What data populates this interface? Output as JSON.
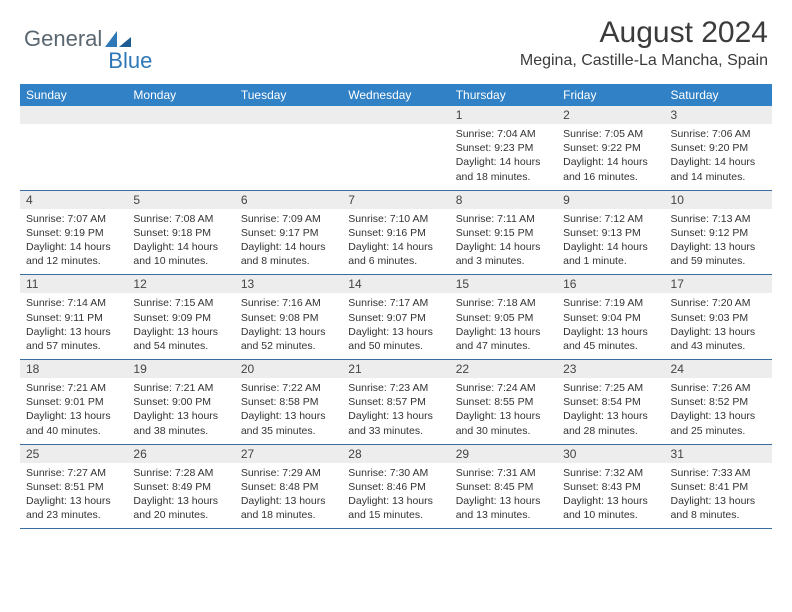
{
  "brand": {
    "part1": "General",
    "part2": "Blue"
  },
  "title": "August 2024",
  "location": "Megina, Castille-La Mancha, Spain",
  "colors": {
    "header_bg": "#3081c6",
    "header_text": "#ffffff",
    "band_bg": "#ededed",
    "rule": "#3b6ca0",
    "logo_gray": "#5a6770",
    "logo_blue": "#2f78b7"
  },
  "day_names": [
    "Sunday",
    "Monday",
    "Tuesday",
    "Wednesday",
    "Thursday",
    "Friday",
    "Saturday"
  ],
  "weeks": [
    [
      {
        "n": "",
        "sr": "",
        "ss": "",
        "dl": ""
      },
      {
        "n": "",
        "sr": "",
        "ss": "",
        "dl": ""
      },
      {
        "n": "",
        "sr": "",
        "ss": "",
        "dl": ""
      },
      {
        "n": "",
        "sr": "",
        "ss": "",
        "dl": ""
      },
      {
        "n": "1",
        "sr": "Sunrise: 7:04 AM",
        "ss": "Sunset: 9:23 PM",
        "dl": "Daylight: 14 hours and 18 minutes."
      },
      {
        "n": "2",
        "sr": "Sunrise: 7:05 AM",
        "ss": "Sunset: 9:22 PM",
        "dl": "Daylight: 14 hours and 16 minutes."
      },
      {
        "n": "3",
        "sr": "Sunrise: 7:06 AM",
        "ss": "Sunset: 9:20 PM",
        "dl": "Daylight: 14 hours and 14 minutes."
      }
    ],
    [
      {
        "n": "4",
        "sr": "Sunrise: 7:07 AM",
        "ss": "Sunset: 9:19 PM",
        "dl": "Daylight: 14 hours and 12 minutes."
      },
      {
        "n": "5",
        "sr": "Sunrise: 7:08 AM",
        "ss": "Sunset: 9:18 PM",
        "dl": "Daylight: 14 hours and 10 minutes."
      },
      {
        "n": "6",
        "sr": "Sunrise: 7:09 AM",
        "ss": "Sunset: 9:17 PM",
        "dl": "Daylight: 14 hours and 8 minutes."
      },
      {
        "n": "7",
        "sr": "Sunrise: 7:10 AM",
        "ss": "Sunset: 9:16 PM",
        "dl": "Daylight: 14 hours and 6 minutes."
      },
      {
        "n": "8",
        "sr": "Sunrise: 7:11 AM",
        "ss": "Sunset: 9:15 PM",
        "dl": "Daylight: 14 hours and 3 minutes."
      },
      {
        "n": "9",
        "sr": "Sunrise: 7:12 AM",
        "ss": "Sunset: 9:13 PM",
        "dl": "Daylight: 14 hours and 1 minute."
      },
      {
        "n": "10",
        "sr": "Sunrise: 7:13 AM",
        "ss": "Sunset: 9:12 PM",
        "dl": "Daylight: 13 hours and 59 minutes."
      }
    ],
    [
      {
        "n": "11",
        "sr": "Sunrise: 7:14 AM",
        "ss": "Sunset: 9:11 PM",
        "dl": "Daylight: 13 hours and 57 minutes."
      },
      {
        "n": "12",
        "sr": "Sunrise: 7:15 AM",
        "ss": "Sunset: 9:09 PM",
        "dl": "Daylight: 13 hours and 54 minutes."
      },
      {
        "n": "13",
        "sr": "Sunrise: 7:16 AM",
        "ss": "Sunset: 9:08 PM",
        "dl": "Daylight: 13 hours and 52 minutes."
      },
      {
        "n": "14",
        "sr": "Sunrise: 7:17 AM",
        "ss": "Sunset: 9:07 PM",
        "dl": "Daylight: 13 hours and 50 minutes."
      },
      {
        "n": "15",
        "sr": "Sunrise: 7:18 AM",
        "ss": "Sunset: 9:05 PM",
        "dl": "Daylight: 13 hours and 47 minutes."
      },
      {
        "n": "16",
        "sr": "Sunrise: 7:19 AM",
        "ss": "Sunset: 9:04 PM",
        "dl": "Daylight: 13 hours and 45 minutes."
      },
      {
        "n": "17",
        "sr": "Sunrise: 7:20 AM",
        "ss": "Sunset: 9:03 PM",
        "dl": "Daylight: 13 hours and 43 minutes."
      }
    ],
    [
      {
        "n": "18",
        "sr": "Sunrise: 7:21 AM",
        "ss": "Sunset: 9:01 PM",
        "dl": "Daylight: 13 hours and 40 minutes."
      },
      {
        "n": "19",
        "sr": "Sunrise: 7:21 AM",
        "ss": "Sunset: 9:00 PM",
        "dl": "Daylight: 13 hours and 38 minutes."
      },
      {
        "n": "20",
        "sr": "Sunrise: 7:22 AM",
        "ss": "Sunset: 8:58 PM",
        "dl": "Daylight: 13 hours and 35 minutes."
      },
      {
        "n": "21",
        "sr": "Sunrise: 7:23 AM",
        "ss": "Sunset: 8:57 PM",
        "dl": "Daylight: 13 hours and 33 minutes."
      },
      {
        "n": "22",
        "sr": "Sunrise: 7:24 AM",
        "ss": "Sunset: 8:55 PM",
        "dl": "Daylight: 13 hours and 30 minutes."
      },
      {
        "n": "23",
        "sr": "Sunrise: 7:25 AM",
        "ss": "Sunset: 8:54 PM",
        "dl": "Daylight: 13 hours and 28 minutes."
      },
      {
        "n": "24",
        "sr": "Sunrise: 7:26 AM",
        "ss": "Sunset: 8:52 PM",
        "dl": "Daylight: 13 hours and 25 minutes."
      }
    ],
    [
      {
        "n": "25",
        "sr": "Sunrise: 7:27 AM",
        "ss": "Sunset: 8:51 PM",
        "dl": "Daylight: 13 hours and 23 minutes."
      },
      {
        "n": "26",
        "sr": "Sunrise: 7:28 AM",
        "ss": "Sunset: 8:49 PM",
        "dl": "Daylight: 13 hours and 20 minutes."
      },
      {
        "n": "27",
        "sr": "Sunrise: 7:29 AM",
        "ss": "Sunset: 8:48 PM",
        "dl": "Daylight: 13 hours and 18 minutes."
      },
      {
        "n": "28",
        "sr": "Sunrise: 7:30 AM",
        "ss": "Sunset: 8:46 PM",
        "dl": "Daylight: 13 hours and 15 minutes."
      },
      {
        "n": "29",
        "sr": "Sunrise: 7:31 AM",
        "ss": "Sunset: 8:45 PM",
        "dl": "Daylight: 13 hours and 13 minutes."
      },
      {
        "n": "30",
        "sr": "Sunrise: 7:32 AM",
        "ss": "Sunset: 8:43 PM",
        "dl": "Daylight: 13 hours and 10 minutes."
      },
      {
        "n": "31",
        "sr": "Sunrise: 7:33 AM",
        "ss": "Sunset: 8:41 PM",
        "dl": "Daylight: 13 hours and 8 minutes."
      }
    ]
  ]
}
